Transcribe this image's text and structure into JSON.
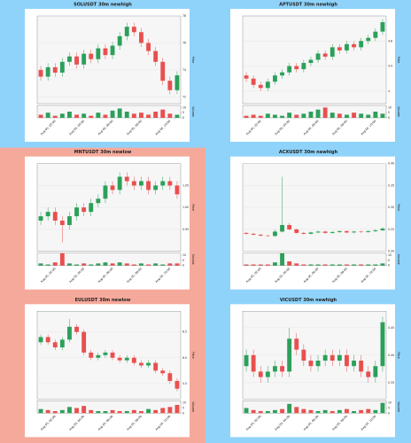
{
  "chart_data": [
    {
      "type": "candlestick",
      "title": "SOLUSDT 30m newhigh",
      "background": "#8fd3fb",
      "ylabel": "Price",
      "vlabel": "Volume",
      "up_color": "#2ca05a",
      "down_color": "#e8504f",
      "categories": [
        null,
        null,
        "Aug 05, 02:00",
        null,
        null,
        null,
        "Aug 05, 04:00",
        null,
        null,
        null,
        "Aug 05, 06:00",
        null,
        null,
        null,
        "Aug 05, 08:00",
        null,
        null,
        null,
        "Aug 05, 10:00",
        null
      ],
      "open": [
        74.0,
        73.5,
        74.2,
        73.8,
        74.6,
        75.0,
        74.4,
        75.2,
        74.8,
        75.6,
        75.1,
        75.8,
        76.5,
        77.2,
        76.8,
        76.0,
        75.4,
        74.6,
        73.2,
        72.5
      ],
      "high": [
        74.3,
        74.5,
        74.5,
        74.9,
        75.3,
        75.3,
        75.5,
        75.5,
        75.9,
        75.9,
        76.1,
        76.8,
        77.5,
        77.5,
        77.1,
        76.3,
        75.7,
        74.9,
        73.5,
        73.9
      ],
      "low": [
        73.2,
        73.2,
        73.5,
        73.5,
        74.3,
        74.1,
        74.1,
        74.5,
        74.5,
        74.8,
        74.8,
        75.5,
        76.2,
        76.5,
        75.7,
        75.1,
        74.3,
        72.9,
        72.2,
        72.2
      ],
      "close": [
        73.5,
        74.2,
        73.8,
        74.6,
        75.0,
        74.4,
        75.2,
        74.8,
        75.6,
        75.1,
        75.8,
        76.5,
        77.2,
        76.8,
        76.0,
        75.4,
        74.6,
        73.2,
        72.5,
        73.6
      ],
      "volume": [
        3,
        5,
        2,
        4,
        6,
        3,
        4,
        2,
        5,
        3,
        7,
        9,
        6,
        4,
        5,
        3,
        6,
        8,
        4,
        3
      ],
      "ylim": [
        71.5,
        78.0
      ],
      "yticks": [
        72,
        74,
        76,
        78
      ],
      "vlim": [
        0,
        12
      ],
      "vticks": [
        0,
        5,
        10
      ]
    },
    {
      "type": "candlestick",
      "title": "APTUSDT 30m newhigh",
      "background": "#8fd3fb",
      "ylabel": "Price",
      "vlabel": "Volume",
      "up_color": "#2ca05a",
      "down_color": "#e8504f",
      "categories": [
        null,
        null,
        "Aug 05, 02:00",
        null,
        null,
        null,
        "Aug 05, 04:00",
        null,
        null,
        null,
        "Aug 05, 06:00",
        null,
        null,
        null,
        "Aug 05, 08:00",
        null,
        null,
        null,
        "Aug 05, 10:00",
        null
      ],
      "open": [
        4.25,
        4.2,
        4.1,
        4.05,
        4.15,
        4.25,
        4.3,
        4.4,
        4.35,
        4.45,
        4.5,
        4.6,
        4.55,
        4.7,
        4.65,
        4.75,
        4.7,
        4.8,
        4.85,
        4.95
      ],
      "high": [
        4.3,
        4.25,
        4.15,
        4.2,
        4.3,
        4.35,
        4.45,
        4.45,
        4.5,
        4.55,
        4.65,
        4.65,
        4.75,
        4.75,
        4.8,
        4.8,
        4.85,
        4.9,
        5.0,
        5.15
      ],
      "low": [
        4.15,
        4.05,
        4.0,
        4.0,
        4.1,
        4.2,
        4.25,
        4.3,
        4.3,
        4.4,
        4.45,
        4.5,
        4.5,
        4.6,
        4.6,
        4.65,
        4.65,
        4.75,
        4.8,
        4.9
      ],
      "close": [
        4.2,
        4.1,
        4.05,
        4.15,
        4.25,
        4.3,
        4.4,
        4.35,
        4.45,
        4.5,
        4.6,
        4.55,
        4.7,
        4.65,
        4.75,
        4.7,
        4.8,
        4.85,
        4.95,
        5.1
      ],
      "volume": [
        2,
        3,
        2,
        4,
        3,
        2,
        5,
        3,
        4,
        6,
        8,
        10,
        5,
        4,
        3,
        5,
        4,
        3,
        6,
        4
      ],
      "ylim": [
        3.8,
        5.2
      ],
      "yticks": [
        4.0,
        4.4,
        4.8
      ],
      "vlim": [
        0,
        12
      ],
      "vticks": [
        0,
        5,
        10
      ]
    },
    {
      "type": "candlestick",
      "title": "MNTUSDT 30m newlow",
      "background": "#f5a99b",
      "ylabel": "Price",
      "vlabel": "Volume",
      "up_color": "#2ca05a",
      "down_color": "#e8504f",
      "categories": [
        null,
        null,
        "Aug 05, 02:00",
        null,
        null,
        null,
        "Aug 05, 04:00",
        null,
        null,
        null,
        "Aug 05, 06:00",
        null,
        null,
        null,
        "Aug 05, 08:00",
        null,
        null,
        null,
        "Aug 05, 10:00",
        null
      ],
      "open": [
        0.97,
        0.98,
        0.99,
        0.97,
        0.96,
        0.98,
        1.0,
        0.99,
        1.01,
        1.02,
        1.05,
        1.04,
        1.07,
        1.06,
        1.05,
        1.06,
        1.04,
        1.05,
        1.06,
        1.05
      ],
      "high": [
        0.99,
        1.0,
        1.0,
        0.98,
        0.99,
        1.01,
        1.01,
        1.02,
        1.03,
        1.06,
        1.06,
        1.08,
        1.08,
        1.07,
        1.07,
        1.07,
        1.06,
        1.07,
        1.07,
        1.06
      ],
      "low": [
        0.96,
        0.97,
        0.96,
        0.92,
        0.95,
        0.97,
        0.98,
        0.98,
        1.0,
        1.01,
        1.03,
        1.03,
        1.05,
        1.04,
        1.04,
        1.03,
        1.03,
        1.04,
        1.04,
        1.02
      ],
      "close": [
        0.98,
        0.99,
        0.97,
        0.96,
        0.98,
        1.0,
        0.99,
        1.01,
        1.02,
        1.05,
        1.04,
        1.07,
        1.06,
        1.05,
        1.06,
        1.04,
        1.05,
        1.06,
        1.05,
        1.03
      ],
      "volume": [
        2,
        1,
        3,
        12,
        2,
        1,
        2,
        1,
        2,
        3,
        2,
        3,
        2,
        1,
        2,
        1,
        2,
        1,
        2,
        2
      ],
      "ylim": [
        0.9,
        1.1
      ],
      "yticks": [
        0.95,
        {
          "value": 1,
          "label": "1.00"
        },
        1.05
      ],
      "vlim": [
        0,
        12
      ],
      "vticks": [
        0,
        5,
        10
      ]
    },
    {
      "type": "candlestick",
      "title": "ACXUSDT 30m newhigh",
      "background": "#8fd3fb",
      "ylabel": "Price",
      "vlabel": "Volume",
      "up_color": "#2ca05a",
      "down_color": "#e8504f",
      "categories": [
        null,
        null,
        "Aug 05, 02:00",
        null,
        null,
        null,
        "Aug 05, 04:00",
        null,
        null,
        null,
        "Aug 05, 06:00",
        null,
        null,
        null,
        "Aug 05, 08:00",
        null,
        null,
        null,
        "Aug 05, 10:00",
        null
      ],
      "open": [
        0.242,
        0.24,
        0.238,
        0.236,
        0.235,
        0.245,
        0.26,
        0.25,
        0.242,
        0.24,
        0.243,
        0.245,
        0.242,
        0.244,
        0.246,
        0.243,
        0.245,
        0.244,
        0.246,
        0.248
      ],
      "high": [
        0.244,
        0.242,
        0.24,
        0.238,
        0.25,
        0.37,
        0.265,
        0.252,
        0.244,
        0.245,
        0.247,
        0.247,
        0.246,
        0.248,
        0.248,
        0.247,
        0.247,
        0.248,
        0.25,
        0.255
      ],
      "low": [
        0.238,
        0.236,
        0.234,
        0.233,
        0.233,
        0.243,
        0.248,
        0.24,
        0.238,
        0.238,
        0.241,
        0.24,
        0.24,
        0.242,
        0.241,
        0.241,
        0.242,
        0.242,
        0.244,
        0.246
      ],
      "close": [
        0.24,
        0.238,
        0.236,
        0.235,
        0.245,
        0.26,
        0.25,
        0.242,
        0.24,
        0.243,
        0.245,
        0.242,
        0.244,
        0.246,
        0.243,
        0.245,
        0.244,
        0.246,
        0.248,
        0.252
      ],
      "volume": [
        1,
        1,
        1,
        1,
        3,
        12,
        4,
        2,
        1,
        1,
        1,
        1,
        1,
        1,
        1,
        1,
        1,
        1,
        1,
        2
      ],
      "ylim": [
        0.2,
        0.4
      ],
      "yticks": [
        {
          "value": 0.2,
          "label": "0.20"
        },
        0.25,
        {
          "value": 0.3,
          "label": "0.30"
        },
        0.35,
        {
          "value": 0.4,
          "label": "0.40"
        }
      ],
      "vlim": [
        0,
        12
      ],
      "vticks": [
        0,
        5,
        10
      ]
    },
    {
      "type": "candlestick",
      "title": "EULUSDT 30m newlow",
      "background": "#f5a99b",
      "ylabel": "Price",
      "vlabel": "Volume",
      "up_color": "#2ca05a",
      "down_color": "#e8504f",
      "categories": [
        null,
        null,
        "Aug 05, 02:00",
        null,
        null,
        null,
        "Aug 05, 04:00",
        null,
        null,
        null,
        "Aug 05, 06:00",
        null,
        null,
        null,
        "Aug 05, 08:00",
        null,
        null,
        null,
        "Aug 05, 10:00",
        null
      ],
      "open": [
        6.3,
        6.4,
        6.3,
        6.2,
        6.35,
        6.6,
        6.5,
        6.1,
        6.0,
        6.05,
        6.1,
        6.0,
        5.95,
        6.0,
        5.9,
        5.85,
        5.9,
        5.75,
        5.7,
        5.55
      ],
      "high": [
        6.45,
        6.45,
        6.35,
        6.4,
        6.75,
        6.65,
        6.55,
        6.15,
        6.1,
        6.15,
        6.15,
        6.05,
        6.05,
        6.05,
        5.95,
        5.95,
        5.95,
        5.8,
        5.75,
        5.6
      ],
      "low": [
        6.25,
        6.25,
        6.15,
        6.15,
        6.3,
        6.45,
        6.05,
        5.95,
        5.95,
        6.0,
        5.95,
        5.9,
        5.9,
        5.85,
        5.8,
        5.8,
        5.7,
        5.65,
        5.5,
        5.35
      ],
      "close": [
        6.4,
        6.3,
        6.2,
        6.35,
        6.6,
        6.5,
        6.1,
        6.0,
        6.05,
        6.1,
        6.0,
        5.95,
        6.0,
        5.9,
        5.85,
        5.9,
        5.75,
        5.7,
        5.55,
        5.4
      ],
      "volume": [
        4,
        3,
        2,
        3,
        6,
        5,
        7,
        3,
        2,
        2,
        3,
        2,
        2,
        3,
        2,
        4,
        3,
        5,
        6,
        8
      ],
      "ylim": [
        5.2,
        6.9
      ],
      "yticks": [
        5.5,
        {
          "value": 6,
          "label": "6.0"
        },
        6.5
      ],
      "vlim": [
        0,
        12
      ],
      "vticks": [
        0,
        5,
        10
      ]
    },
    {
      "type": "candlestick",
      "title": "VICUSDT 30m newhigh",
      "background": "#8fd3fb",
      "ylabel": "Price",
      "vlabel": "Volume",
      "up_color": "#2ca05a",
      "down_color": "#e8504f",
      "categories": [
        null,
        null,
        "Aug 05, 02:00",
        null,
        null,
        null,
        "Aug 05, 04:00",
        null,
        null,
        null,
        "Aug 05, 06:00",
        null,
        null,
        null,
        "Aug 05, 08:00",
        null,
        null,
        null,
        "Aug 05, 10:00",
        null
      ],
      "open": [
        0.38,
        0.4,
        0.37,
        0.36,
        0.37,
        0.38,
        0.37,
        0.43,
        0.41,
        0.39,
        0.38,
        0.39,
        0.4,
        0.39,
        0.4,
        0.38,
        0.39,
        0.37,
        0.36,
        0.38
      ],
      "high": [
        0.41,
        0.41,
        0.38,
        0.38,
        0.39,
        0.39,
        0.45,
        0.44,
        0.42,
        0.4,
        0.4,
        0.41,
        0.41,
        0.41,
        0.41,
        0.4,
        0.4,
        0.38,
        0.39,
        0.47
      ],
      "low": [
        0.37,
        0.36,
        0.35,
        0.35,
        0.36,
        0.36,
        0.36,
        0.4,
        0.38,
        0.37,
        0.37,
        0.38,
        0.38,
        0.38,
        0.37,
        0.37,
        0.36,
        0.35,
        0.35,
        0.37
      ],
      "close": [
        0.4,
        0.37,
        0.36,
        0.37,
        0.38,
        0.37,
        0.43,
        0.41,
        0.39,
        0.38,
        0.39,
        0.4,
        0.39,
        0.4,
        0.38,
        0.39,
        0.37,
        0.36,
        0.38,
        0.46
      ],
      "volume": [
        5,
        3,
        2,
        2,
        3,
        4,
        9,
        6,
        4,
        3,
        2,
        3,
        2,
        3,
        4,
        2,
        3,
        4,
        3,
        10
      ],
      "ylim": [
        0.32,
        0.48
      ],
      "yticks": [
        0.35,
        {
          "value": 0.4,
          "label": "0.40"
        },
        0.45
      ],
      "vlim": [
        0,
        12
      ],
      "vticks": [
        0,
        5,
        10
      ]
    }
  ]
}
